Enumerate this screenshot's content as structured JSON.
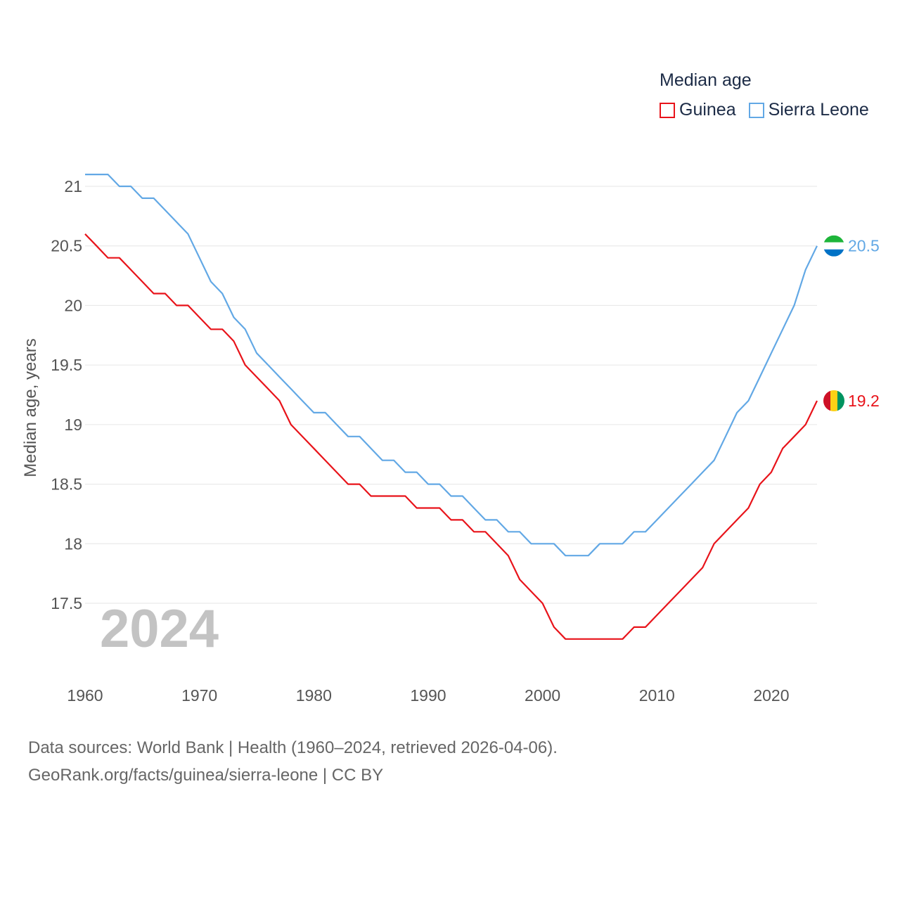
{
  "chart_data": {
    "type": "line",
    "title": "Median age",
    "ylabel": "Median age, years",
    "xlabel": "",
    "xlim": [
      1960,
      2024
    ],
    "ylim": [
      16.9,
      21.3
    ],
    "y_ticks": [
      17.5,
      18,
      18.5,
      19,
      19.5,
      20,
      20.5,
      21
    ],
    "x_ticks": [
      1960,
      1970,
      1980,
      1990,
      2000,
      2010,
      2020
    ],
    "grid": true,
    "year_highlight": "2024",
    "x": [
      1960,
      1961,
      1962,
      1963,
      1964,
      1965,
      1966,
      1967,
      1968,
      1969,
      1970,
      1971,
      1972,
      1973,
      1974,
      1975,
      1976,
      1977,
      1978,
      1979,
      1980,
      1981,
      1982,
      1983,
      1984,
      1985,
      1986,
      1987,
      1988,
      1989,
      1990,
      1991,
      1992,
      1993,
      1994,
      1995,
      1996,
      1997,
      1998,
      1999,
      2000,
      2001,
      2002,
      2003,
      2004,
      2005,
      2006,
      2007,
      2008,
      2009,
      2010,
      2011,
      2012,
      2013,
      2014,
      2015,
      2016,
      2017,
      2018,
      2019,
      2020,
      2021,
      2022,
      2023,
      2024
    ],
    "series": [
      {
        "name": "Guinea",
        "color": "#e8131a",
        "end_label": "19.2",
        "values": [
          20.6,
          20.5,
          20.4,
          20.4,
          20.3,
          20.2,
          20.1,
          20.1,
          20.0,
          20.0,
          19.9,
          19.8,
          19.8,
          19.7,
          19.5,
          19.4,
          19.3,
          19.2,
          19.0,
          18.9,
          18.8,
          18.7,
          18.6,
          18.5,
          18.5,
          18.4,
          18.4,
          18.4,
          18.4,
          18.3,
          18.3,
          18.3,
          18.2,
          18.2,
          18.1,
          18.1,
          18.0,
          17.9,
          17.7,
          17.6,
          17.5,
          17.3,
          17.2,
          17.2,
          17.2,
          17.2,
          17.2,
          17.2,
          17.3,
          17.3,
          17.4,
          17.5,
          17.6,
          17.7,
          17.8,
          18.0,
          18.1,
          18.2,
          18.3,
          18.5,
          18.6,
          18.8,
          18.9,
          19.0,
          19.2
        ]
      },
      {
        "name": "Sierra Leone",
        "color": "#62a8e5",
        "end_label": "20.5",
        "values": [
          21.1,
          21.1,
          21.1,
          21.0,
          21.0,
          20.9,
          20.9,
          20.8,
          20.7,
          20.6,
          20.4,
          20.2,
          20.1,
          19.9,
          19.8,
          19.6,
          19.5,
          19.4,
          19.3,
          19.2,
          19.1,
          19.1,
          19.0,
          18.9,
          18.9,
          18.8,
          18.7,
          18.7,
          18.6,
          18.6,
          18.5,
          18.5,
          18.4,
          18.4,
          18.3,
          18.2,
          18.2,
          18.1,
          18.1,
          18.0,
          18.0,
          18.0,
          17.9,
          17.9,
          17.9,
          18.0,
          18.0,
          18.0,
          18.1,
          18.1,
          18.2,
          18.3,
          18.4,
          18.5,
          18.6,
          18.7,
          18.9,
          19.1,
          19.2,
          19.4,
          19.6,
          19.8,
          20.0,
          20.3,
          20.5
        ]
      }
    ]
  },
  "legend": {
    "title": "Median age",
    "items": [
      {
        "label": "Guinea",
        "color": "#e8131a"
      },
      {
        "label": "Sierra Leone",
        "color": "#62a8e5"
      }
    ]
  },
  "flags": {
    "guinea": [
      "#ce1126",
      "#fcd116",
      "#009460"
    ],
    "sierra_leone": [
      "#1eb53a",
      "#ffffff",
      "#0072c6"
    ]
  },
  "footer": {
    "line1": "Data sources: World Bank | Health (1960–2024, retrieved 2026-04-06).",
    "line2": "GeoRank.org/facts/guinea/sierra-leone | CC BY"
  }
}
